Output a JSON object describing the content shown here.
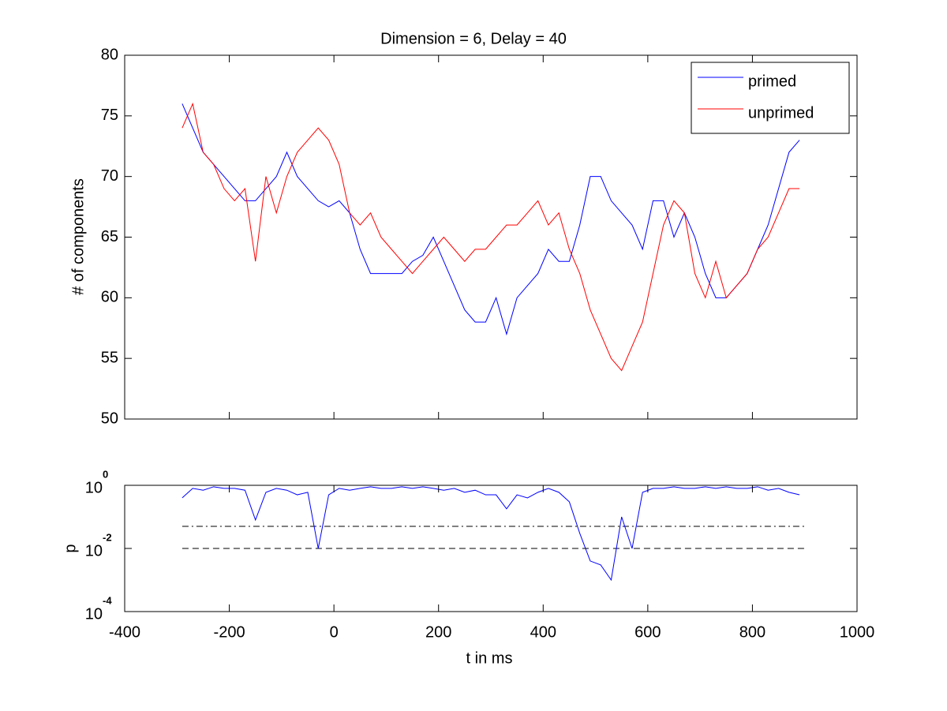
{
  "chart_data": [
    {
      "type": "line",
      "title": "Dimension  = 6, Delay = 40",
      "ylabel": "# of components",
      "x": [
        -290,
        -270,
        -250,
        -230,
        -210,
        -190,
        -170,
        -150,
        -130,
        -110,
        -90,
        -70,
        -50,
        -30,
        -10,
        10,
        30,
        50,
        70,
        90,
        110,
        130,
        150,
        170,
        190,
        210,
        230,
        250,
        270,
        290,
        310,
        330,
        350,
        370,
        390,
        410,
        430,
        450,
        470,
        490,
        510,
        530,
        550,
        570,
        590,
        610,
        630,
        650,
        670,
        690,
        710,
        730,
        750,
        770,
        790,
        810,
        830,
        850,
        870,
        890
      ],
      "series": [
        {
          "name": "primed",
          "color": "#0000ff",
          "values": [
            76,
            74,
            72,
            71,
            70,
            69,
            68,
            68,
            69,
            70,
            72,
            70,
            69,
            68,
            67.5,
            68,
            67,
            64,
            62,
            62,
            62,
            62,
            63,
            63.5,
            65,
            63,
            61,
            59,
            58,
            58,
            60,
            57,
            60,
            61,
            62,
            64,
            63,
            63,
            66,
            70,
            70,
            68,
            67,
            66,
            64,
            68,
            68,
            65,
            67,
            65,
            62,
            60,
            60,
            61,
            62,
            64,
            66,
            69,
            72,
            73
          ]
        },
        {
          "name": "unprimed",
          "color": "#ff0000",
          "values": [
            74,
            76,
            72,
            71,
            69,
            68,
            69,
            63,
            70,
            67,
            70,
            72,
            73,
            74,
            73,
            71,
            67,
            66,
            67,
            65,
            64,
            63,
            62,
            63,
            64,
            65,
            64,
            63,
            64,
            64,
            65,
            66,
            66,
            67,
            68,
            66,
            67,
            64,
            62,
            59,
            57,
            55,
            54,
            56,
            58,
            62,
            66,
            68,
            67,
            62,
            60,
            63,
            60,
            61,
            62,
            64,
            65,
            67,
            69,
            69
          ]
        }
      ],
      "xlim": [
        -400,
        1000
      ],
      "xticks": [
        -400,
        -200,
        0,
        200,
        400,
        600,
        800,
        1000
      ],
      "ylim": [
        50,
        80
      ],
      "yticks": [
        50,
        55,
        60,
        65,
        70,
        75,
        80
      ],
      "legend": "top-right"
    },
    {
      "type": "line",
      "xlabel": "t in ms",
      "ylabel": "p",
      "log_y": true,
      "x": [
        -290,
        -270,
        -250,
        -230,
        -210,
        -190,
        -170,
        -150,
        -130,
        -110,
        -90,
        -70,
        -50,
        -30,
        -10,
        10,
        30,
        50,
        70,
        90,
        110,
        130,
        150,
        170,
        190,
        210,
        230,
        250,
        270,
        290,
        310,
        330,
        350,
        370,
        390,
        410,
        430,
        450,
        470,
        490,
        510,
        530,
        550,
        570,
        590,
        610,
        630,
        650,
        670,
        690,
        710,
        730,
        750,
        770,
        790,
        810,
        830,
        850,
        870,
        890
      ],
      "series": [
        {
          "color": "#0000ff",
          "values": [
            0.4,
            0.8,
            0.7,
            0.9,
            0.8,
            0.8,
            0.7,
            0.08,
            0.6,
            0.8,
            0.7,
            0.5,
            0.6,
            0.01,
            0.5,
            0.8,
            0.7,
            0.8,
            0.9,
            0.8,
            0.8,
            0.9,
            0.8,
            0.9,
            0.8,
            0.7,
            0.8,
            0.6,
            0.7,
            0.5,
            0.5,
            0.18,
            0.5,
            0.4,
            0.6,
            0.8,
            0.6,
            0.3,
            0.03,
            0.004,
            0.003,
            0.001,
            0.1,
            0.01,
            0.6,
            0.8,
            0.8,
            0.9,
            0.8,
            0.8,
            0.9,
            0.8,
            0.9,
            0.8,
            0.8,
            0.9,
            0.7,
            0.8,
            0.6,
            0.5
          ]
        }
      ],
      "hlines": [
        {
          "value": 0.05,
          "style": "dashdot",
          "color": "#000000",
          "xlim": [
            -290,
            900
          ]
        },
        {
          "value": 0.01,
          "style": "dashed",
          "color": "#000000",
          "xlim": [
            -290,
            900
          ]
        }
      ],
      "xlim": [
        -400,
        1000
      ],
      "xticks": [
        -400,
        -200,
        0,
        200,
        400,
        600,
        800,
        1000
      ],
      "ylim": [
        0.0001,
        1
      ],
      "yticks": [
        {
          "value": 0.0001,
          "label": "10",
          "exponent": "-4"
        },
        {
          "value": 0.01,
          "label": "10",
          "exponent": "-2"
        },
        {
          "value": 1,
          "label": "10",
          "exponent": "0"
        }
      ]
    }
  ]
}
